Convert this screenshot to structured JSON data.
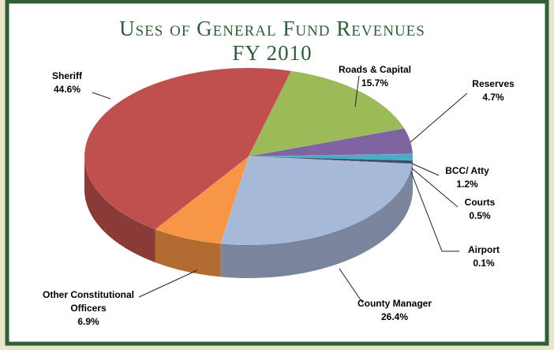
{
  "chart_data": {
    "type": "pie",
    "title": "Uses of General Fund Revenues",
    "subtitle": "FY 2010",
    "categories": [
      "Roads & Capital",
      "Reserves",
      "BCC/ Atty",
      "Courts",
      "Airport",
      "County Manager",
      "Other Constitutional Officers",
      "Sheriff"
    ],
    "values": [
      15.7,
      4.7,
      1.2,
      0.5,
      0.1,
      26.4,
      6.9,
      44.6
    ],
    "value_labels": [
      "15.7%",
      "4.7%",
      "1.2%",
      "0.5%",
      "0.1%",
      "26.4%",
      "6.9%",
      "44.6%"
    ],
    "colors": [
      "#9bbb59",
      "#8064a2",
      "#4bacc6",
      "#2c4d75",
      "#772c2a",
      "#a7b9d9",
      "#f79646",
      "#c0504d"
    ]
  }
}
